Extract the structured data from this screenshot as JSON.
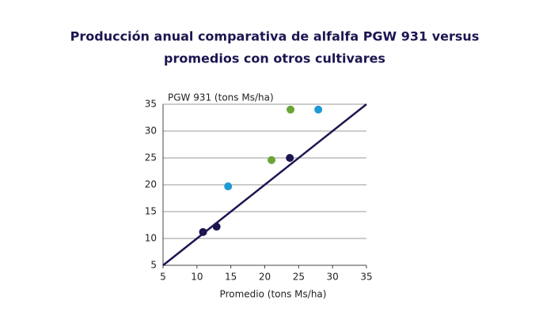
{
  "chart_data": {
    "type": "scatter",
    "title": [
      "Producción anual comparativa de alfalfa PGW 931 versus",
      "promedios con otros cultivares"
    ],
    "xlabel": "Promedio (tons Ms/ha)",
    "ylabel": "PGW 931 (tons Ms/ha)",
    "xlim": [
      5,
      35
    ],
    "ylim": [
      5,
      35
    ],
    "xticks": [
      5,
      10,
      15,
      20,
      25,
      30,
      35
    ],
    "yticks": [
      5,
      10,
      15,
      20,
      25,
      30,
      35
    ],
    "grid": true,
    "series": [
      {
        "color": "#1b1650",
        "x": [
          10.9,
          12.9,
          23.7
        ],
        "values": [
          11.2,
          12.2,
          25
        ]
      },
      {
        "color": "#1e9ad6",
        "x": [
          14.6,
          27.9
        ],
        "values": [
          19.7,
          34
        ]
      },
      {
        "color": "#6aa535",
        "x": [
          21,
          23.8
        ],
        "values": [
          24.6,
          34
        ]
      }
    ],
    "line": {
      "color": "#1b1650",
      "x": [
        5,
        35
      ],
      "values": [
        5,
        35
      ]
    }
  }
}
